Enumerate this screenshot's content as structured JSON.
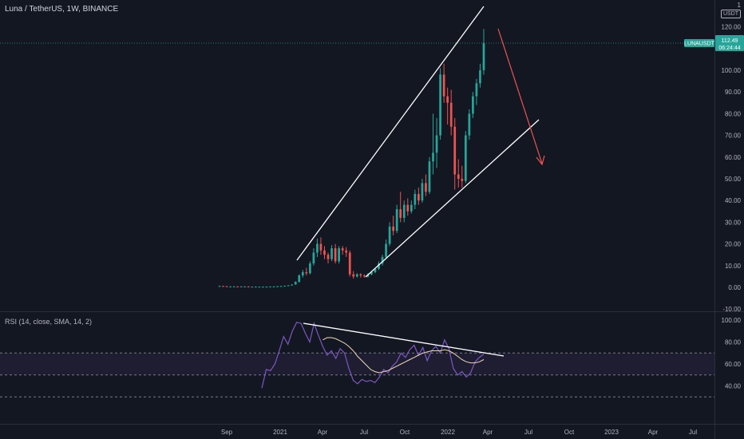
{
  "header": {
    "symbol": "Luna / TetherUS",
    "interval": "1W",
    "exchange": "BINANCE"
  },
  "corner": {
    "one": "1",
    "currency": "USDT"
  },
  "price_badge": {
    "symbol": "LUNAUSDT",
    "price": "112.49",
    "countdown": "06:24:44"
  },
  "rsi_header": "RSI (14, close, SMA, 14, 2)",
  "colors": {
    "background": "#131722",
    "up": "#26a69a",
    "down": "#ef5350",
    "rsi_line": "#7e57c2",
    "rsi_ma": "#f0d9b5",
    "trend": "#ffffff",
    "arrow": "#ef5350",
    "badge": "#26a69a"
  },
  "chart_data": [
    {
      "type": "candlestick",
      "title": "Luna / TetherUS, 1W, BINANCE",
      "ylim": [
        -10,
        125
      ],
      "y_ticks": [
        "120.00",
        "110.00",
        "100.00",
        "90.00",
        "80.00",
        "70.00",
        "60.00",
        "50.00",
        "40.00",
        "30.00",
        "20.00",
        "10.00",
        "0.00",
        "-10.00"
      ],
      "x_ticks": [
        "Sep",
        "2021",
        "Apr",
        "Jul",
        "Oct",
        "2022",
        "Apr",
        "Jul",
        "Oct",
        "2023",
        "Apr",
        "Jul"
      ],
      "candles": [
        {
          "o": 0.6,
          "h": 0.8,
          "l": 0.4,
          "c": 0.6
        },
        {
          "o": 0.6,
          "h": 0.7,
          "l": 0.4,
          "c": 0.5
        },
        {
          "o": 0.5,
          "h": 0.6,
          "l": 0.3,
          "c": 0.4
        },
        {
          "o": 0.4,
          "h": 0.5,
          "l": 0.3,
          "c": 0.4
        },
        {
          "o": 0.4,
          "h": 0.5,
          "l": 0.3,
          "c": 0.4
        },
        {
          "o": 0.4,
          "h": 0.5,
          "l": 0.3,
          "c": 0.3
        },
        {
          "o": 0.3,
          "h": 0.5,
          "l": 0.2,
          "c": 0.4
        },
        {
          "o": 0.4,
          "h": 0.5,
          "l": 0.3,
          "c": 0.4
        },
        {
          "o": 0.4,
          "h": 0.5,
          "l": 0.3,
          "c": 0.3
        },
        {
          "o": 0.3,
          "h": 0.4,
          "l": 0.2,
          "c": 0.3
        },
        {
          "o": 0.3,
          "h": 0.4,
          "l": 0.2,
          "c": 0.3
        },
        {
          "o": 0.3,
          "h": 0.4,
          "l": 0.2,
          "c": 0.3
        },
        {
          "o": 0.3,
          "h": 0.4,
          "l": 0.2,
          "c": 0.3
        },
        {
          "o": 0.3,
          "h": 0.4,
          "l": 0.2,
          "c": 0.3
        },
        {
          "o": 0.3,
          "h": 0.4,
          "l": 0.2,
          "c": 0.4
        },
        {
          "o": 0.4,
          "h": 0.5,
          "l": 0.3,
          "c": 0.4
        },
        {
          "o": 0.4,
          "h": 0.6,
          "l": 0.3,
          "c": 0.5
        },
        {
          "o": 0.5,
          "h": 0.7,
          "l": 0.4,
          "c": 0.6
        },
        {
          "o": 0.6,
          "h": 0.8,
          "l": 0.5,
          "c": 0.7
        },
        {
          "o": 0.7,
          "h": 1.0,
          "l": 0.6,
          "c": 0.9
        },
        {
          "o": 0.9,
          "h": 1.4,
          "l": 0.8,
          "c": 1.3
        },
        {
          "o": 1.3,
          "h": 2.8,
          "l": 1.2,
          "c": 2.5
        },
        {
          "o": 2.5,
          "h": 6.0,
          "l": 2.3,
          "c": 5.5
        },
        {
          "o": 5.5,
          "h": 8.0,
          "l": 4.5,
          "c": 7.0
        },
        {
          "o": 7.0,
          "h": 9.0,
          "l": 5.5,
          "c": 6.5
        },
        {
          "o": 6.5,
          "h": 12.0,
          "l": 6.0,
          "c": 11.0
        },
        {
          "o": 11.0,
          "h": 18.0,
          "l": 10.0,
          "c": 16.0
        },
        {
          "o": 16.0,
          "h": 22.5,
          "l": 14.0,
          "c": 20.0
        },
        {
          "o": 20.0,
          "h": 23.0,
          "l": 15.0,
          "c": 17.0
        },
        {
          "o": 17.0,
          "h": 19.0,
          "l": 13.0,
          "c": 15.0
        },
        {
          "o": 15.0,
          "h": 16.0,
          "l": 11.0,
          "c": 13.0
        },
        {
          "o": 13.0,
          "h": 19.5,
          "l": 12.0,
          "c": 18.0
        },
        {
          "o": 18.0,
          "h": 20.0,
          "l": 11.0,
          "c": 12.0
        },
        {
          "o": 12.0,
          "h": 19.0,
          "l": 11.0,
          "c": 18.0
        },
        {
          "o": 18.0,
          "h": 19.0,
          "l": 15.0,
          "c": 17.0
        },
        {
          "o": 17.0,
          "h": 18.5,
          "l": 14.0,
          "c": 16.0
        },
        {
          "o": 16.0,
          "h": 17.0,
          "l": 5.0,
          "c": 6.0
        },
        {
          "o": 6.0,
          "h": 7.5,
          "l": 4.0,
          "c": 5.0
        },
        {
          "o": 5.0,
          "h": 6.5,
          "l": 4.5,
          "c": 6.0
        },
        {
          "o": 6.0,
          "h": 6.5,
          "l": 4.5,
          "c": 5.5
        },
        {
          "o": 5.5,
          "h": 6.0,
          "l": 4.5,
          "c": 5.0
        },
        {
          "o": 5.0,
          "h": 6.5,
          "l": 4.5,
          "c": 6.0
        },
        {
          "o": 6.0,
          "h": 7.5,
          "l": 5.5,
          "c": 7.0
        },
        {
          "o": 7.0,
          "h": 9.0,
          "l": 6.5,
          "c": 8.5
        },
        {
          "o": 8.5,
          "h": 12.0,
          "l": 8.0,
          "c": 11.0
        },
        {
          "o": 11.0,
          "h": 15.0,
          "l": 10.0,
          "c": 14.0
        },
        {
          "o": 14.0,
          "h": 22.0,
          "l": 13.0,
          "c": 20.0
        },
        {
          "o": 20.0,
          "h": 30.0,
          "l": 19.0,
          "c": 28.0
        },
        {
          "o": 28.0,
          "h": 33.0,
          "l": 24.0,
          "c": 26.0
        },
        {
          "o": 26.0,
          "h": 38.0,
          "l": 25.0,
          "c": 36.0
        },
        {
          "o": 36.0,
          "h": 44.0,
          "l": 30.0,
          "c": 32.0
        },
        {
          "o": 32.0,
          "h": 40.0,
          "l": 30.0,
          "c": 38.0
        },
        {
          "o": 38.0,
          "h": 41.0,
          "l": 33.0,
          "c": 35.0
        },
        {
          "o": 35.0,
          "h": 40.0,
          "l": 34.0,
          "c": 38.0
        },
        {
          "o": 38.0,
          "h": 45.0,
          "l": 36.0,
          "c": 43.0
        },
        {
          "o": 43.0,
          "h": 46.0,
          "l": 38.0,
          "c": 40.0
        },
        {
          "o": 40.0,
          "h": 50.0,
          "l": 39.0,
          "c": 48.0
        },
        {
          "o": 48.0,
          "h": 52.0,
          "l": 42.0,
          "c": 44.0
        },
        {
          "o": 44.0,
          "h": 60.0,
          "l": 43.0,
          "c": 58.0
        },
        {
          "o": 58.0,
          "h": 80.0,
          "l": 52.0,
          "c": 62.0
        },
        {
          "o": 62.0,
          "h": 78.0,
          "l": 55.0,
          "c": 70.0
        },
        {
          "o": 70.0,
          "h": 101.0,
          "l": 68.0,
          "c": 98.0
        },
        {
          "o": 98.0,
          "h": 103.0,
          "l": 85.0,
          "c": 88.0
        },
        {
          "o": 88.0,
          "h": 92.0,
          "l": 75.0,
          "c": 85.0
        },
        {
          "o": 85.0,
          "h": 91.0,
          "l": 70.0,
          "c": 74.0
        },
        {
          "o": 74.0,
          "h": 78.0,
          "l": 45.0,
          "c": 52.0
        },
        {
          "o": 52.0,
          "h": 59.0,
          "l": 46.0,
          "c": 50.0
        },
        {
          "o": 50.0,
          "h": 56.0,
          "l": 46.0,
          "c": 49.0
        },
        {
          "o": 49.0,
          "h": 72.0,
          "l": 48.0,
          "c": 70.0
        },
        {
          "o": 70.0,
          "h": 82.0,
          "l": 68.0,
          "c": 80.0
        },
        {
          "o": 80.0,
          "h": 90.0,
          "l": 78.0,
          "c": 88.0
        },
        {
          "o": 88.0,
          "h": 96.0,
          "l": 84.0,
          "c": 94.0
        },
        {
          "o": 94.0,
          "h": 103.0,
          "l": 92.0,
          "c": 100.0
        },
        {
          "o": 100.0,
          "h": 119.0,
          "l": 98.0,
          "c": 112.49
        }
      ]
    },
    {
      "type": "line",
      "title": "RSI (14, close, SMA, 14, 2)",
      "ylim": [
        30,
        104
      ],
      "y_ticks": [
        "100.00",
        "80.00",
        "60.00",
        "40.00"
      ],
      "band": [
        50,
        70
      ],
      "series": [
        {
          "name": "RSI",
          "values": [
            38,
            55,
            54,
            60,
            72,
            85,
            78,
            90,
            98,
            97,
            88,
            80,
            97,
            86,
            76,
            68,
            72,
            65,
            74,
            70,
            56,
            45,
            42,
            46,
            44,
            45,
            43,
            48,
            55,
            52,
            58,
            62,
            70,
            66,
            73,
            77,
            68,
            75,
            63,
            72,
            76,
            70,
            82,
            74,
            56,
            50,
            53,
            48,
            52,
            62,
            66,
            69
          ]
        },
        {
          "name": "RSI-based MA",
          "values": [
            null,
            null,
            null,
            null,
            null,
            null,
            null,
            null,
            null,
            null,
            null,
            null,
            null,
            null,
            82,
            84,
            84,
            83,
            81,
            79,
            76,
            72,
            67,
            63,
            59,
            55,
            53,
            52,
            53,
            54,
            56,
            58,
            60,
            62,
            64,
            66,
            68,
            70,
            71,
            72,
            72,
            72,
            73,
            72,
            70,
            67,
            64,
            62,
            61,
            61,
            62,
            64
          ]
        }
      ]
    }
  ]
}
